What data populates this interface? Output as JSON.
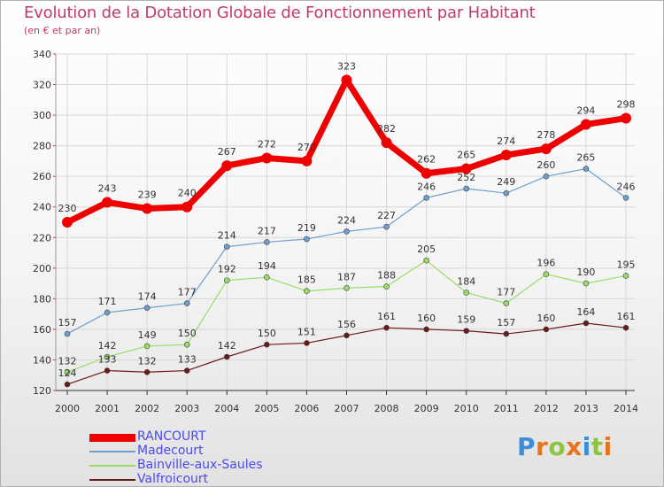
{
  "title": "Evolution de la Dotation Globale de Fonctionnement par Habitant",
  "subtitle": "(en € et par an)",
  "brand": {
    "letters": [
      "P",
      "r",
      "o",
      "x",
      "i",
      "t",
      "i"
    ],
    "colors": [
      "#3a8fd8",
      "#e8731c",
      "#8cc63f",
      "#e8731c",
      "#3a8fd8",
      "#8cc63f",
      "#e8731c"
    ]
  },
  "chart_data": {
    "type": "line",
    "title": "Evolution de la Dotation Globale de Fonctionnement par Habitant",
    "subtitle": "(en € et par an)",
    "xlabel": "",
    "ylabel": "",
    "ylim": [
      120,
      340
    ],
    "yticks": [
      120,
      140,
      160,
      180,
      200,
      220,
      240,
      260,
      280,
      300,
      320,
      340
    ],
    "grid": true,
    "legend_position": "bottom-left",
    "categories": [
      "2000",
      "2001",
      "2002",
      "2003",
      "2004",
      "2005",
      "2006",
      "2007",
      "2008",
      "2009",
      "2010",
      "2011",
      "2012",
      "2013",
      "2014"
    ],
    "series": [
      {
        "name": "RANCOURT",
        "color": "#ee0000",
        "values": [
          230,
          243,
          239,
          240,
          267,
          272,
          270,
          323,
          282,
          262,
          265,
          274,
          278,
          294,
          298
        ]
      },
      {
        "name": "Madecourt",
        "color": "#6e9fd0",
        "values": [
          157,
          171,
          174,
          177,
          214,
          217,
          219,
          224,
          227,
          246,
          252,
          249,
          260,
          265,
          246
        ]
      },
      {
        "name": "Bainville-aux-Saules",
        "color": "#99dd66",
        "values": [
          132,
          142,
          149,
          150,
          192,
          194,
          185,
          187,
          188,
          205,
          184,
          177,
          196,
          190,
          195
        ]
      },
      {
        "name": "Valfroicourt",
        "color": "#6b1a1a",
        "values": [
          124,
          133,
          132,
          133,
          142,
          150,
          151,
          156,
          161,
          160,
          159,
          157,
          160,
          164,
          161
        ]
      }
    ]
  }
}
